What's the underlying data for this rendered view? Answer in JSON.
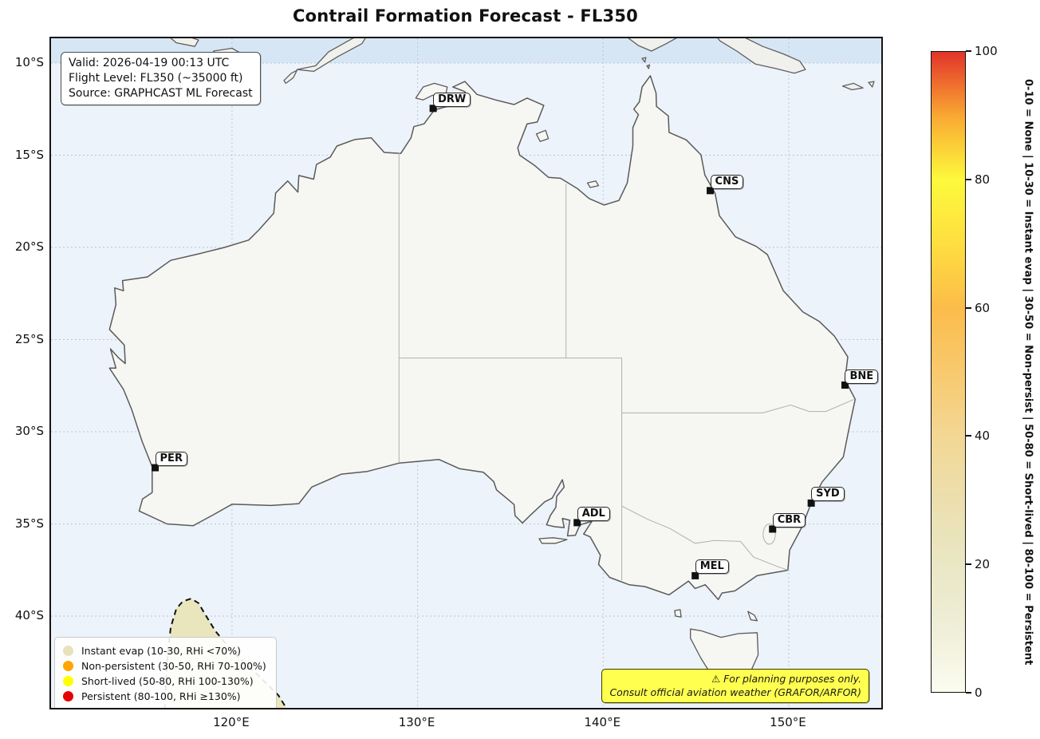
{
  "title": "Contrail Formation Forecast - FL350",
  "info_box": {
    "lines": [
      "Valid: 2026-04-19 00:13 UTC",
      "Flight Level: FL350 (~35000 ft)",
      "Source: GRAPHCAST ML Forecast"
    ]
  },
  "warning_box": {
    "line1": "⚠ For planning purposes only.",
    "line2": "Consult official aviation weather (GRAFOR/ARFOR)"
  },
  "axes": {
    "x_ticks": [
      {
        "label": "120°E",
        "lon": 120
      },
      {
        "label": "130°E",
        "lon": 130
      },
      {
        "label": "140°E",
        "lon": 140
      },
      {
        "label": "150°E",
        "lon": 150
      }
    ],
    "y_ticks": [
      {
        "label": "10°S",
        "lat_s": 10
      },
      {
        "label": "15°S",
        "lat_s": 15
      },
      {
        "label": "20°S",
        "lat_s": 20
      },
      {
        "label": "25°S",
        "lat_s": 25
      },
      {
        "label": "30°S",
        "lat_s": 30
      },
      {
        "label": "35°S",
        "lat_s": 35
      },
      {
        "label": "40°S",
        "lat_s": 40
      }
    ]
  },
  "legend": {
    "items": [
      {
        "color": "#e8e1bb",
        "label": "Instant evap (10-30, RHi <70%)"
      },
      {
        "color": "#ffa500",
        "label": "Non-persistent (30-50, RHi 70-100%)"
      },
      {
        "color": "#ffff00",
        "label": "Short-lived (50-80, RHi 100-130%)"
      },
      {
        "color": "#e60000",
        "label": "Persistent (80-100, RHi ≥130%)"
      }
    ]
  },
  "colorbar": {
    "min": 0,
    "max": 100,
    "ticks": [
      0,
      20,
      40,
      60,
      80,
      100
    ],
    "label": "0-10 = None | 10-30 = Instant evap | 30-50 = Non-persist | 50-80 = Short-lived | 80-100 = Persistent"
  },
  "cities": [
    {
      "code": "DRW",
      "lon": 130.84,
      "lat_s": 12.46
    },
    {
      "code": "CNS",
      "lon": 145.77,
      "lat_s": 16.92
    },
    {
      "code": "BNE",
      "lon": 153.03,
      "lat_s": 27.47
    },
    {
      "code": "PER",
      "lon": 115.86,
      "lat_s": 31.95
    },
    {
      "code": "SYD",
      "lon": 151.21,
      "lat_s": 33.87
    },
    {
      "code": "CBR",
      "lon": 149.13,
      "lat_s": 35.28
    },
    {
      "code": "ADL",
      "lon": 138.6,
      "lat_s": 34.93
    },
    {
      "code": "MEL",
      "lon": 144.96,
      "lat_s": 37.81
    }
  ],
  "chart_data": {
    "type": "map",
    "title": "Contrail Formation Forecast - FL350",
    "region": "Australia",
    "extent": {
      "lon": [
        110.25,
        155.0
      ],
      "lat": [
        -45.0,
        -8.66
      ]
    },
    "colorbar_range": [
      0,
      100
    ],
    "contour_region": {
      "category": "Instant evap (10-30)",
      "style": "dashed outline, beige fill",
      "approx_outline_lon_lat_s": [
        [
          116.35,
          45.0
        ],
        [
          116.7,
          40.6
        ],
        [
          117.35,
          39.2
        ],
        [
          117.8,
          39.05
        ],
        [
          118.55,
          39.9
        ],
        [
          120.0,
          41.9
        ],
        [
          122.5,
          44.3
        ],
        [
          123.3,
          45.0
        ]
      ]
    }
  }
}
